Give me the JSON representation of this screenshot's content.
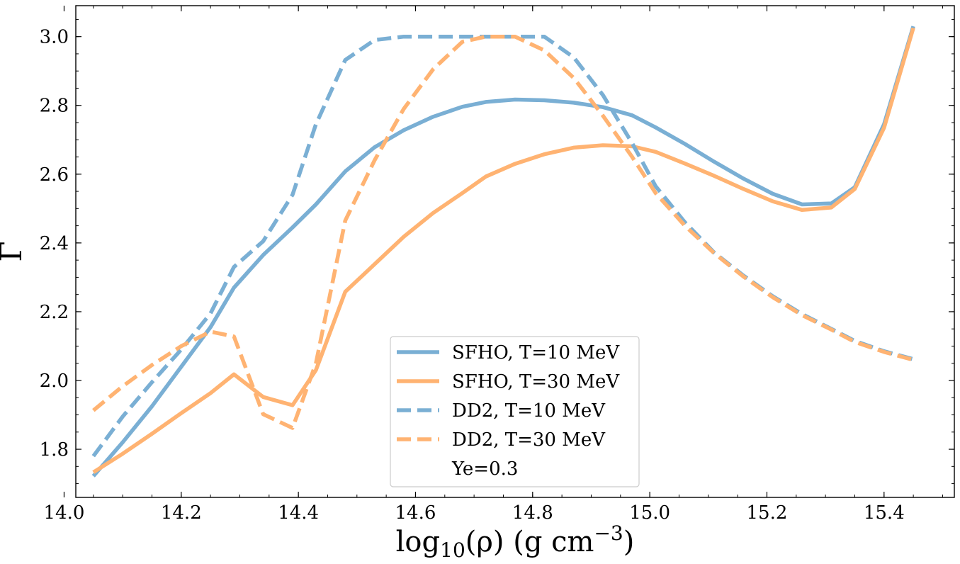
{
  "chart_data": {
    "type": "line",
    "title": "",
    "xlabel": {
      "base": "log",
      "sub": "10",
      "rest": "(ρ) (g cm",
      "sup": "−3",
      "close": ")"
    },
    "ylabel": "Γ",
    "xlim": [
      14.02,
      15.52
    ],
    "ylim": [
      1.66,
      3.09
    ],
    "xticks": [
      14.0,
      14.2,
      14.4,
      14.6,
      14.8,
      15.0,
      15.2,
      15.4
    ],
    "xtick_labels": [
      "14.0",
      "14.2",
      "14.4",
      "14.6",
      "14.8",
      "15.0",
      "15.2",
      "15.4"
    ],
    "yticks": [
      1.8,
      2.0,
      2.2,
      2.4,
      2.6,
      2.8,
      3.0
    ],
    "ytick_labels": [
      "1.8",
      "2.0",
      "2.2",
      "2.4",
      "2.6",
      "2.8",
      "3.0"
    ],
    "colors": {
      "blue": "#7aafd4",
      "orange": "#ffb372"
    },
    "legend_note": "Ye=0.3",
    "series": [
      {
        "name": "SFHO, T=10 MeV",
        "color": "blue",
        "dash": "solid",
        "x": [
          14.05,
          14.1,
          14.15,
          14.2,
          14.25,
          14.29,
          14.34,
          14.39,
          14.43,
          14.48,
          14.53,
          14.58,
          14.63,
          14.68,
          14.72,
          14.77,
          14.82,
          14.87,
          14.92,
          14.97,
          15.01,
          15.06,
          15.11,
          15.16,
          15.21,
          15.26,
          15.31,
          15.35,
          15.4,
          15.45
        ],
        "y": [
          1.722,
          1.82,
          1.925,
          2.04,
          2.155,
          2.27,
          2.365,
          2.445,
          2.512,
          2.608,
          2.678,
          2.728,
          2.767,
          2.796,
          2.81,
          2.817,
          2.815,
          2.808,
          2.795,
          2.771,
          2.736,
          2.688,
          2.636,
          2.587,
          2.543,
          2.512,
          2.515,
          2.562,
          2.745,
          3.03
        ]
      },
      {
        "name": "SFHO, T=30 MeV",
        "color": "orange",
        "dash": "solid",
        "x": [
          14.05,
          14.1,
          14.15,
          14.2,
          14.25,
          14.29,
          14.34,
          14.39,
          14.43,
          14.48,
          14.53,
          14.58,
          14.63,
          14.68,
          14.72,
          14.77,
          14.82,
          14.87,
          14.92,
          14.97,
          15.01,
          15.06,
          15.11,
          15.16,
          15.21,
          15.26,
          15.31,
          15.35,
          15.4,
          15.45
        ],
        "y": [
          1.733,
          1.787,
          1.845,
          1.905,
          1.963,
          2.018,
          1.952,
          1.928,
          2.03,
          2.258,
          2.338,
          2.418,
          2.487,
          2.545,
          2.593,
          2.63,
          2.658,
          2.677,
          2.684,
          2.681,
          2.665,
          2.631,
          2.595,
          2.557,
          2.521,
          2.496,
          2.503,
          2.557,
          2.735,
          3.025
        ]
      },
      {
        "name": "DD2, T=10 MeV",
        "color": "blue",
        "dash": "dashed",
        "x": [
          14.05,
          14.1,
          14.15,
          14.2,
          14.25,
          14.29,
          14.34,
          14.39,
          14.43,
          14.48,
          14.53,
          14.58,
          14.63,
          14.68,
          14.72,
          14.77,
          14.82,
          14.87,
          14.92,
          14.97,
          15.01,
          15.06,
          15.11,
          15.16,
          15.21,
          15.26,
          15.31,
          15.35,
          15.4,
          15.45
        ],
        "y": [
          1.78,
          1.895,
          1.995,
          2.09,
          2.195,
          2.33,
          2.405,
          2.54,
          2.745,
          2.932,
          2.99,
          3.0,
          3.0,
          3.0,
          3.0,
          3.0,
          3.0,
          2.94,
          2.83,
          2.69,
          2.565,
          2.46,
          2.372,
          2.305,
          2.245,
          2.193,
          2.15,
          2.115,
          2.085,
          2.062
        ]
      },
      {
        "name": "DD2, T=30 MeV",
        "color": "orange",
        "dash": "dashed",
        "x": [
          14.05,
          14.1,
          14.15,
          14.2,
          14.25,
          14.29,
          14.34,
          14.39,
          14.43,
          14.48,
          14.53,
          14.58,
          14.63,
          14.68,
          14.72,
          14.77,
          14.82,
          14.87,
          14.92,
          14.97,
          15.01,
          15.06,
          15.11,
          15.16,
          15.21,
          15.26,
          15.31,
          15.35,
          15.4,
          15.45
        ],
        "y": [
          1.913,
          1.983,
          2.045,
          2.1,
          2.142,
          2.128,
          1.902,
          1.862,
          2.05,
          2.465,
          2.64,
          2.79,
          2.905,
          2.985,
          3.0,
          3.0,
          2.96,
          2.88,
          2.77,
          2.65,
          2.545,
          2.45,
          2.37,
          2.302,
          2.242,
          2.19,
          2.148,
          2.112,
          2.083,
          2.06
        ]
      }
    ]
  }
}
